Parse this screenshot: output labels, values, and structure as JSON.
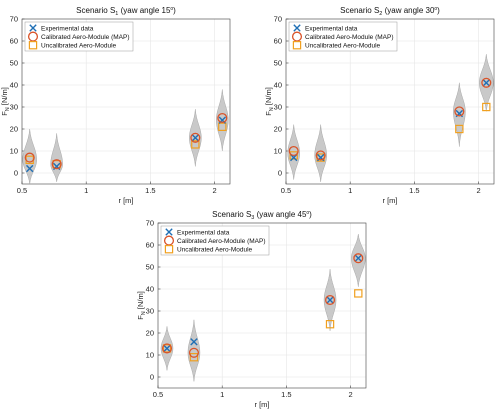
{
  "chart_data": [
    {
      "type": "scatter",
      "title": "Scenario S",
      "title_sub": "1",
      "title_rest": " (yaw angle 15",
      "title_sup": "o",
      "title_end": ")",
      "xlabel": "r [m]",
      "ylabel": "F",
      "ylabel_sub": "N",
      "ylabel_rest": " [N/m]",
      "xlim": [
        0.5,
        2.12
      ],
      "ylim": [
        -5,
        70
      ],
      "xticks": [
        0.5,
        1,
        1.5,
        2
      ],
      "yticks": [
        0,
        10,
        20,
        30,
        40,
        50,
        60,
        70
      ],
      "grid": true,
      "legend_position": "top-left",
      "x": [
        0.56,
        0.77,
        1.85,
        2.06
      ],
      "series": [
        {
          "name": "Experimental data",
          "marker": "x",
          "color": "#1f6fb5",
          "values": [
            2,
            3,
            16,
            24
          ]
        },
        {
          "name": "Calibrated Aero-Module (MAP)",
          "marker": "circle",
          "color": "#d9542a",
          "values": [
            7,
            4,
            16,
            25
          ]
        },
        {
          "name": "Uncalibrated Aero-Module",
          "marker": "square",
          "color": "#f0a020",
          "values": [
            6,
            4,
            13,
            21
          ]
        }
      ],
      "violins": [
        {
          "x": 0.56,
          "top": 20,
          "bottom": -5,
          "center": 6,
          "width": 7
        },
        {
          "x": 0.77,
          "top": 18,
          "bottom": -4,
          "center": 4,
          "width": 6
        },
        {
          "x": 1.85,
          "top": 29,
          "bottom": 3,
          "center": 16,
          "width": 6
        },
        {
          "x": 2.06,
          "top": 38,
          "bottom": 10,
          "center": 24,
          "width": 6
        }
      ]
    },
    {
      "type": "scatter",
      "title": "Scenario S",
      "title_sub": "2",
      "title_rest": " (yaw angle 30",
      "title_sup": "o",
      "title_end": ")",
      "xlabel": "r [m]",
      "ylabel": "F",
      "ylabel_sub": "N",
      "ylabel_rest": " [N/m]",
      "xlim": [
        0.5,
        2.12
      ],
      "ylim": [
        -5,
        70
      ],
      "xticks": [
        0.5,
        1,
        1.5,
        2
      ],
      "yticks": [
        0,
        10,
        20,
        30,
        40,
        50,
        60,
        70
      ],
      "grid": true,
      "legend_position": "top-left",
      "x": [
        0.56,
        0.77,
        1.85,
        2.06
      ],
      "series": [
        {
          "name": "Experimental data",
          "marker": "x",
          "color": "#1f6fb5",
          "values": [
            7,
            7,
            27,
            41
          ]
        },
        {
          "name": "Calibrated Aero-Module (MAP)",
          "marker": "circle",
          "color": "#d9542a",
          "values": [
            10,
            8,
            28,
            41
          ]
        },
        {
          "name": "Uncalibrated Aero-Module",
          "marker": "square",
          "color": "#f0a020",
          "values": [
            8,
            7,
            20,
            30
          ]
        }
      ],
      "violins": [
        {
          "x": 0.56,
          "top": 22,
          "bottom": -3,
          "center": 9,
          "width": 6
        },
        {
          "x": 0.77,
          "top": 22,
          "bottom": -4,
          "center": 8,
          "width": 6
        },
        {
          "x": 1.85,
          "top": 41,
          "bottom": 12,
          "center": 28,
          "width": 6
        },
        {
          "x": 2.06,
          "top": 54,
          "bottom": 28,
          "center": 41,
          "width": 7
        }
      ]
    },
    {
      "type": "scatter",
      "title": "Scenario S",
      "title_sub": "3",
      "title_rest": " (yaw angle 45",
      "title_sup": "o",
      "title_end": ")",
      "xlabel": "r [m]",
      "ylabel": "F",
      "ylabel_sub": "N",
      "ylabel_rest": " [N/m]",
      "xlim": [
        0.5,
        2.12
      ],
      "ylim": [
        -5,
        70
      ],
      "xticks": [
        0.5,
        1,
        1.5,
        2
      ],
      "yticks": [
        0,
        10,
        20,
        30,
        40,
        50,
        60,
        70
      ],
      "grid": true,
      "legend_position": "top-left",
      "x": [
        0.57,
        0.78,
        1.84,
        2.06
      ],
      "series": [
        {
          "name": "Experimental data",
          "marker": "x",
          "color": "#1f6fb5",
          "values": [
            13,
            16,
            35,
            54
          ]
        },
        {
          "name": "Calibrated Aero-Module (MAP)",
          "marker": "circle",
          "color": "#d9542a",
          "values": [
            13,
            11,
            35,
            54
          ]
        },
        {
          "name": "Uncalibrated Aero-Module",
          "marker": "square",
          "color": "#f0a020",
          "values": [
            13,
            9,
            24,
            38
          ]
        }
      ],
      "violins": [
        {
          "x": 0.57,
          "top": 23,
          "bottom": 3,
          "center": 13,
          "width": 6
        },
        {
          "x": 0.78,
          "top": 26,
          "bottom": -2,
          "center": 11,
          "width": 6
        },
        {
          "x": 1.84,
          "top": 49,
          "bottom": 21,
          "center": 35,
          "width": 6
        },
        {
          "x": 2.06,
          "top": 65,
          "bottom": 41,
          "center": 54,
          "width": 7
        }
      ]
    }
  ]
}
